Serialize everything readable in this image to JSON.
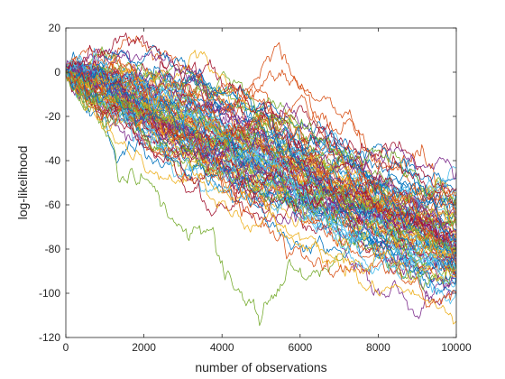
{
  "chart_data": {
    "type": "line",
    "title": "",
    "xlabel": "number of observations",
    "ylabel": "log-likelihood",
    "xlim": [
      0,
      10000
    ],
    "ylim": [
      -120,
      20
    ],
    "xticks": [
      0,
      2000,
      4000,
      6000,
      8000,
      10000
    ],
    "yticks": [
      20,
      0,
      -20,
      -40,
      -60,
      -80,
      -100,
      -120
    ],
    "xtick_labels": [
      "0",
      "2000",
      "4000",
      "6000",
      "8000",
      "10000"
    ],
    "ytick_labels": [
      "20",
      "0",
      "-20",
      "-40",
      "-60",
      "-80",
      "-100",
      "-120"
    ],
    "grid": false,
    "legend": "none",
    "series_count": 100,
    "colors": [
      "#0072bd",
      "#d95319",
      "#edb120",
      "#7e2f8e",
      "#77ac30",
      "#4dbeee",
      "#a2142f"
    ],
    "series_summary": {
      "start_value": 0,
      "end_value_range": [
        -114,
        -46
      ],
      "typical_end_value": -78
    }
  }
}
